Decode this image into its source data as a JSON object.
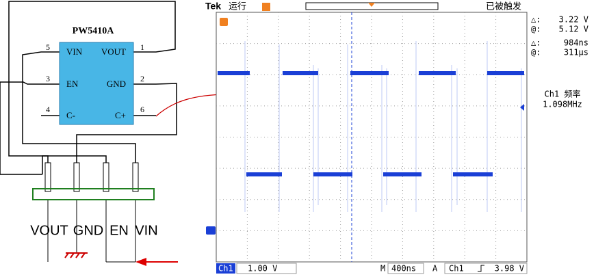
{
  "circuit": {
    "chip": {
      "name": "PW5410A",
      "pins": [
        {
          "number": "5",
          "label": "VIN"
        },
        {
          "number": "1",
          "label": "VOUT"
        },
        {
          "number": "3",
          "label": "EN"
        },
        {
          "number": "2",
          "label": "GND"
        },
        {
          "number": "4",
          "label": "C-"
        },
        {
          "number": "6",
          "label": "C+"
        }
      ]
    },
    "connector": [
      "VOUT",
      "GND",
      "EN",
      "VIN"
    ]
  },
  "scope": {
    "header": {
      "brand": "Tek",
      "status": "运行",
      "trigger_status": "已被触发"
    },
    "cursors": [
      {
        "label": "△:",
        "value": "3.22 V"
      },
      {
        "label": "@:",
        "value": "5.12 V"
      },
      {
        "label": "△:",
        "value": "984ns"
      },
      {
        "label": "@:",
        "value": "311µs"
      }
    ],
    "measurement": {
      "label": "Ch1 频率",
      "value": "1.098MHz"
    },
    "footer": {
      "channel": "Ch1",
      "scale": "1.00 V",
      "time_label": "M",
      "timebase": "400ns",
      "trigger_label": "A",
      "trigger_channel": "Ch1",
      "trigger_level": "3.98 V"
    }
  }
}
